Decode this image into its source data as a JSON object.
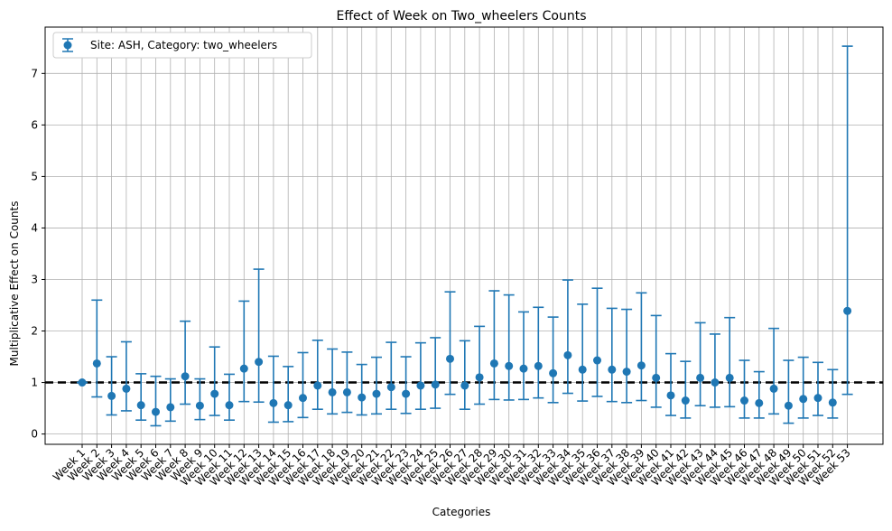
{
  "chart_data": {
    "type": "scatter",
    "title": "Effect of Week on Two_wheelers Counts",
    "xlabel": "Categories",
    "ylabel": "Multiplicative Effect on Counts",
    "ylim": [
      -0.2,
      7.9
    ],
    "yticks": [
      0,
      1,
      2,
      3,
      4,
      5,
      6,
      7
    ],
    "grid": true,
    "legend_position": "top-left",
    "reference_line": 1,
    "categories": [
      "Week 1",
      "Week 2",
      "Week 3",
      "Week 4",
      "Week 5",
      "Week 6",
      "Week 7",
      "Week 8",
      "Week 9",
      "Week 10",
      "Week 11",
      "Week 12",
      "Week 13",
      "Week 14",
      "Week 15",
      "Week 16",
      "Week 17",
      "Week 18",
      "Week 19",
      "Week 20",
      "Week 21",
      "Week 22",
      "Week 23",
      "Week 24",
      "Week 25",
      "Week 26",
      "Week 27",
      "Week 28",
      "Week 29",
      "Week 30",
      "Week 31",
      "Week 32",
      "Week 33",
      "Week 34",
      "Week 35",
      "Week 36",
      "Week 37",
      "Week 38",
      "Week 39",
      "Week 40",
      "Week 41",
      "Week 42",
      "Week 43",
      "Week 44",
      "Week 45",
      "Week 46",
      "Week 47",
      "Week 48",
      "Week 49",
      "Week 50",
      "Week 51",
      "Week 52",
      "Week 53"
    ],
    "series": [
      {
        "name": "Site: ASH, Category: two_wheelers",
        "color": "#1f77b4",
        "values": [
          1.0,
          1.37,
          0.74,
          0.88,
          0.56,
          0.43,
          0.52,
          1.12,
          0.55,
          0.78,
          0.56,
          1.27,
          1.4,
          0.6,
          0.56,
          0.7,
          0.94,
          0.81,
          0.81,
          0.71,
          0.78,
          0.91,
          0.78,
          0.94,
          0.96,
          1.46,
          0.94,
          1.1,
          1.37,
          1.32,
          1.27,
          1.32,
          1.18,
          1.53,
          1.25,
          1.43,
          1.25,
          1.21,
          1.33,
          1.09,
          0.75,
          0.65,
          1.09,
          1.0,
          1.09,
          0.65,
          0.6,
          0.88,
          0.55,
          0.68,
          0.7,
          0.61,
          2.39
        ],
        "lower": [
          1.0,
          0.72,
          0.37,
          0.45,
          0.27,
          0.16,
          0.25,
          0.58,
          0.28,
          0.36,
          0.27,
          0.63,
          0.62,
          0.23,
          0.24,
          0.32,
          0.48,
          0.39,
          0.42,
          0.37,
          0.39,
          0.48,
          0.4,
          0.48,
          0.5,
          0.77,
          0.48,
          0.58,
          0.67,
          0.66,
          0.67,
          0.7,
          0.61,
          0.79,
          0.64,
          0.73,
          0.63,
          0.61,
          0.65,
          0.52,
          0.36,
          0.31,
          0.55,
          0.52,
          0.53,
          0.31,
          0.31,
          0.39,
          0.21,
          0.31,
          0.36,
          0.31,
          0.77
        ],
        "upper": [
          1.0,
          2.6,
          1.5,
          1.79,
          1.17,
          1.12,
          1.07,
          2.19,
          1.07,
          1.69,
          1.16,
          2.58,
          3.2,
          1.51,
          1.31,
          1.58,
          1.82,
          1.65,
          1.59,
          1.35,
          1.49,
          1.78,
          1.5,
          1.77,
          1.87,
          2.76,
          1.81,
          2.09,
          2.78,
          2.7,
          2.37,
          2.46,
          2.27,
          2.99,
          2.52,
          2.83,
          2.44,
          2.42,
          2.74,
          2.3,
          1.56,
          1.41,
          2.16,
          1.94,
          2.26,
          1.43,
          1.21,
          2.05,
          1.43,
          1.49,
          1.39,
          1.25,
          7.53
        ]
      }
    ]
  }
}
